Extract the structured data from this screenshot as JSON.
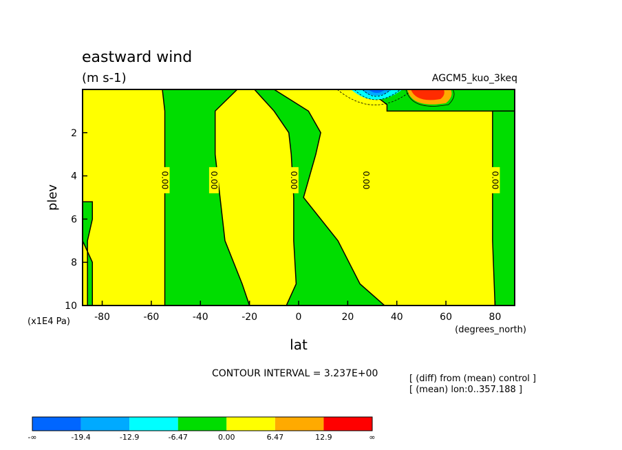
{
  "chart_data": {
    "type": "contour",
    "title": "eastward wind",
    "units": "(m s-1)",
    "experiment": "AGCM5_kuo_3keq",
    "xlabel": "lat",
    "xunits": "(degrees_north)",
    "ylabel": "plev",
    "yunits": "(x1E4 Pa)",
    "xlim": [
      -88,
      88
    ],
    "ylim": [
      0,
      10
    ],
    "y_inverted": true,
    "xticks": [
      -80,
      -60,
      -40,
      -20,
      0,
      20,
      40,
      60,
      80
    ],
    "xtick_labels": [
      "-80",
      "-60",
      "-40",
      "-20",
      "0",
      "20",
      "40",
      "60",
      "80"
    ],
    "yticks": [
      2,
      4,
      6,
      8,
      10
    ],
    "ytick_labels": [
      "2",
      "4",
      "6",
      "8",
      "10"
    ],
    "contour_interval_text": "CONTOUR INTERVAL = 3.237E+00",
    "notes": [
      "[ (diff) from (mean) control ]",
      "[ (mean) lon:0..357.188 ]"
    ],
    "zero_contour_labels": [
      {
        "text": "0.00",
        "lat": -54.5,
        "plev": 4.2
      },
      {
        "text": "0.00",
        "lat": -34.5,
        "plev": 4.2
      },
      {
        "text": "0.00",
        "lat": -2,
        "plev": 4.2
      },
      {
        "text": "0.00",
        "lat": 27.5,
        "plev": 4.2
      },
      {
        "text": "0.00",
        "lat": 80,
        "plev": 4.2
      }
    ],
    "regions": [
      {
        "name": "negative",
        "color": "#00dd00",
        "lat_left": [
          -88,
          -88,
          -88,
          -84,
          -84,
          -84
        ],
        "lat_right": [
          -84,
          -84,
          -86,
          -86,
          -86,
          -86
        ],
        "plev": [
          5.2,
          6,
          7,
          8,
          9,
          10
        ]
      },
      {
        "name": "negative",
        "color": "#00dd00",
        "lat_left": [
          -55.5,
          -54.5,
          -54.5,
          -54.5,
          -54.5,
          -54.5,
          -54.5
        ],
        "lat_right": [
          -25,
          -34,
          -34,
          -32,
          -30,
          -23,
          -20
        ],
        "plev": [
          0,
          1,
          3,
          5,
          7,
          9,
          10
        ]
      },
      {
        "name": "negative",
        "color": "#00dd00",
        "lat_left": [
          -18,
          -10,
          -4,
          -3,
          -2,
          -2,
          -1,
          -5
        ],
        "lat_right": [
          -10,
          4,
          9,
          7,
          2,
          16,
          25,
          35
        ],
        "plev": [
          0,
          1,
          2,
          3,
          5,
          7,
          9,
          10
        ]
      },
      {
        "name": "negative",
        "color": "#00dd00",
        "lat_left": [
          28,
          36,
          36
        ],
        "lat_right": [
          88,
          88,
          88
        ],
        "plev": [
          0,
          0.7,
          1
        ]
      },
      {
        "name": "negative",
        "color": "#00dd00",
        "lat_left": [
          79,
          79,
          79,
          80
        ],
        "lat_right": [
          88,
          88,
          88,
          88
        ],
        "plev": [
          1,
          4,
          7,
          10
        ]
      }
    ],
    "peaks": [
      {
        "sign": "negative",
        "lat": 32,
        "plev": 0.3,
        "min": -19.4
      },
      {
        "sign": "positive",
        "lat": 49,
        "plev": 0.3,
        "max": 12.9
      }
    ],
    "colorbar": {
      "colors": [
        "#0066ff",
        "#00aaff",
        "#00ffff",
        "#00dd00",
        "#ffff00",
        "#ffaa00",
        "#ff0000"
      ],
      "labels": [
        "-∞",
        "-19.4",
        "-12.9",
        "-6.47",
        "0.00",
        "6.47",
        "12.9",
        "∞"
      ]
    }
  }
}
